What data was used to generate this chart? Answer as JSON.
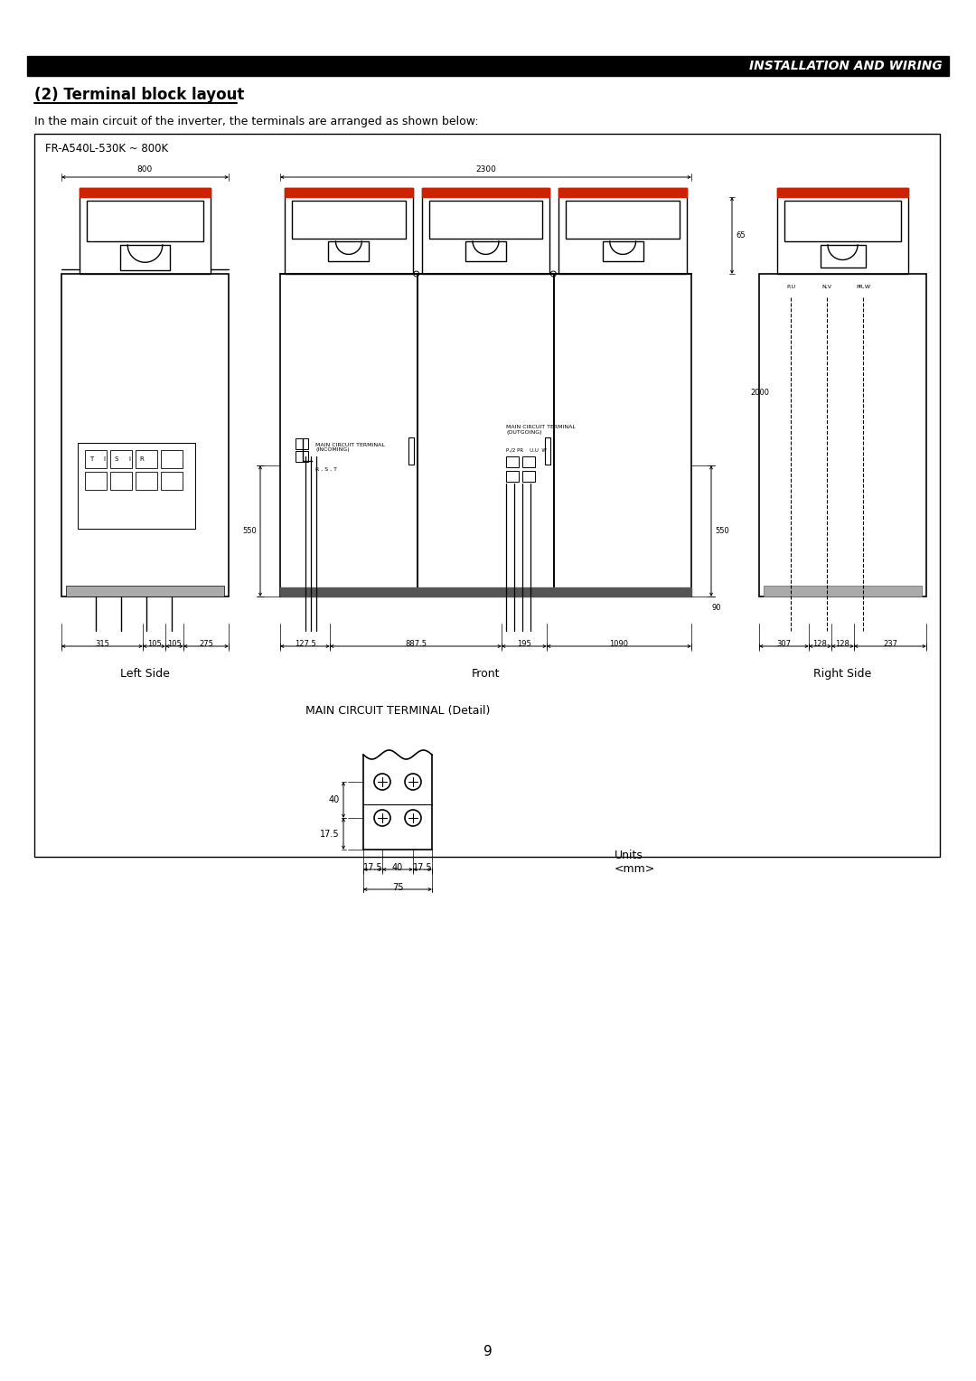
{
  "page_title": "INSTALLATION AND WIRING",
  "section_title": "(2) Terminal block layout",
  "section_text": "In the main circuit of the inverter, the terminals are arranged as shown below:",
  "diagram_label": "FR-A540L-530K ~ 800K",
  "left_label": "Left Side",
  "front_label": "Front",
  "right_label": "Right Side",
  "detail_label": "MAIN CIRCUIT TERMINAL (Detail)",
  "units_label": "Units\n<mm>",
  "page_number": "9",
  "bg_color": "#ffffff",
  "line_color": "#000000",
  "red_color": "#cc2200",
  "header_bg": "#000000",
  "header_text_color": "#ffffff"
}
